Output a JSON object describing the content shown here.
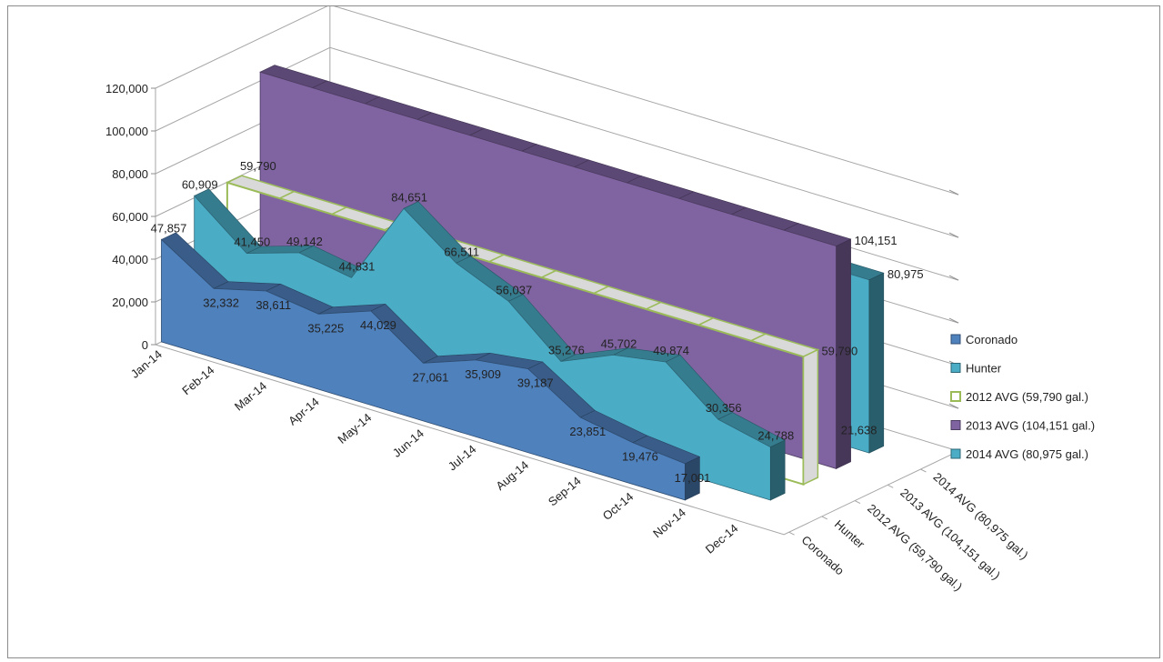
{
  "chart_data": {
    "type": "area",
    "style": "3d",
    "categories": [
      "Jan-14",
      "Feb-14",
      "Mar-14",
      "Apr-14",
      "May-14",
      "Jun-14",
      "Jul-14",
      "Aug-14",
      "Sep-14",
      "Oct-14",
      "Nov-14",
      "Dec-14"
    ],
    "series": [
      {
        "name": "Coronado",
        "type": "area",
        "color": "#4f81bd",
        "values": [
          47857,
          32332,
          38611,
          35225,
          44029,
          27061,
          35909,
          39187,
          23851,
          19476,
          17001,
          null
        ]
      },
      {
        "name": "Hunter",
        "type": "area",
        "color": "#4bacc6",
        "values": [
          60909,
          41450,
          49142,
          44831,
          84651,
          66511,
          56037,
          35276,
          45702,
          49874,
          30356,
          24788
        ]
      },
      {
        "name": "2012 AVG (59,790 gal.)",
        "type": "area",
        "color": "#9bbb59",
        "fill": "none",
        "values": [
          59790,
          59790,
          59790,
          59790,
          59790,
          59790,
          59790,
          59790,
          59790,
          59790,
          59790,
          59790
        ],
        "labels": {
          "start": "59,790",
          "end": "59,790"
        }
      },
      {
        "name": "2013 AVG (104,151 gal.)",
        "type": "area",
        "color": "#8064a2",
        "values": [
          104151,
          104151,
          104151,
          104151,
          104151,
          104151,
          104151,
          104151,
          104151,
          104151,
          104151,
          104151
        ],
        "labels": {
          "end": "104,151"
        }
      },
      {
        "name": "2014 AVG (80,975 gal.)",
        "type": "area",
        "color": "#4bacc6",
        "values": [
          80975,
          80975,
          80975,
          80975,
          80975,
          80975,
          80975,
          80975,
          80975,
          80975,
          80975,
          80975
        ],
        "labels": {
          "end": "80,975"
        }
      }
    ],
    "depth_labels": [
      "Coronado",
      "Hunter",
      "2012 AVG (59,790 gal.)",
      "2013 AVG (104,151 gal.)",
      "2014 AVG (80,975 gal.)"
    ],
    "extra_label": "21,638",
    "yticks": [
      "0",
      "20,000",
      "40,000",
      "60,000",
      "80,000",
      "100,000",
      "120,000"
    ],
    "ylim": [
      0,
      120000
    ],
    "grid": true,
    "legend": "right"
  }
}
